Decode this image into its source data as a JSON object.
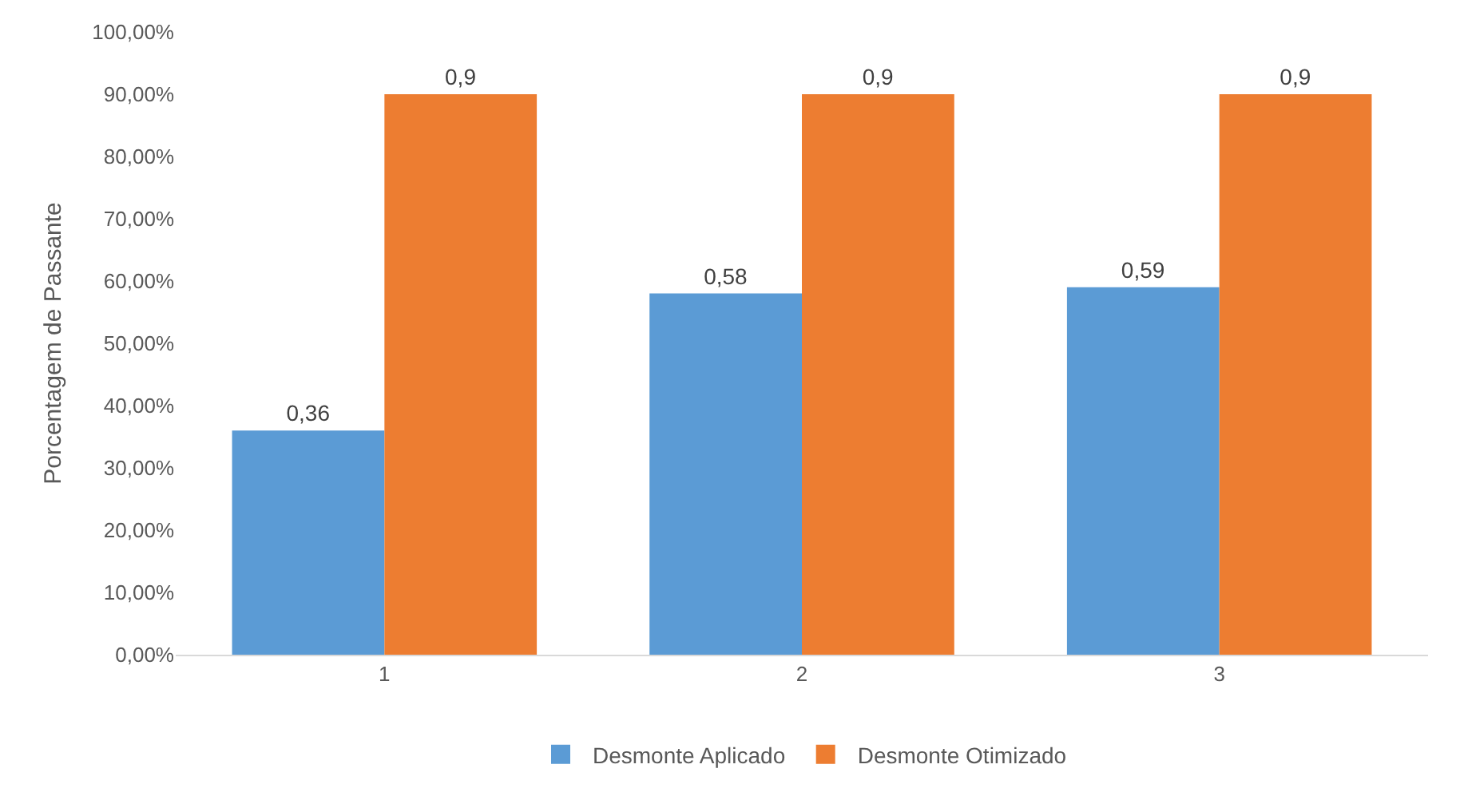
{
  "chart_data": {
    "type": "bar",
    "ylabel": "Porcentagem de Passante",
    "categories": [
      "1",
      "2",
      "3"
    ],
    "series": [
      {
        "name": "Desmonte Aplicado",
        "color": "#5b9bd5",
        "values": [
          0.36,
          0.58,
          0.59
        ],
        "value_labels": [
          "0,36",
          "0,58",
          "0,59"
        ]
      },
      {
        "name": "Desmonte Otimizado",
        "color": "#ed7d31",
        "values": [
          0.9,
          0.9,
          0.9
        ],
        "value_labels": [
          "0,9",
          "0,9",
          "0,9"
        ]
      }
    ],
    "ylim": [
      0,
      1
    ],
    "yticks": [
      {
        "value": 0,
        "label": "0,00%"
      },
      {
        "value": 0.1,
        "label": "10,00%"
      },
      {
        "value": 0.2,
        "label": "20,00%"
      },
      {
        "value": 0.3,
        "label": "30,00%"
      },
      {
        "value": 0.4,
        "label": "40,00%"
      },
      {
        "value": 0.5,
        "label": "50,00%"
      },
      {
        "value": 0.6,
        "label": "60,00%"
      },
      {
        "value": 0.7,
        "label": "70,00%"
      },
      {
        "value": 0.8,
        "label": "80,00%"
      },
      {
        "value": 0.9,
        "label": "90,00%"
      },
      {
        "value": 1,
        "label": "100,00%"
      }
    ],
    "grid": false,
    "legend": "bottom"
  }
}
